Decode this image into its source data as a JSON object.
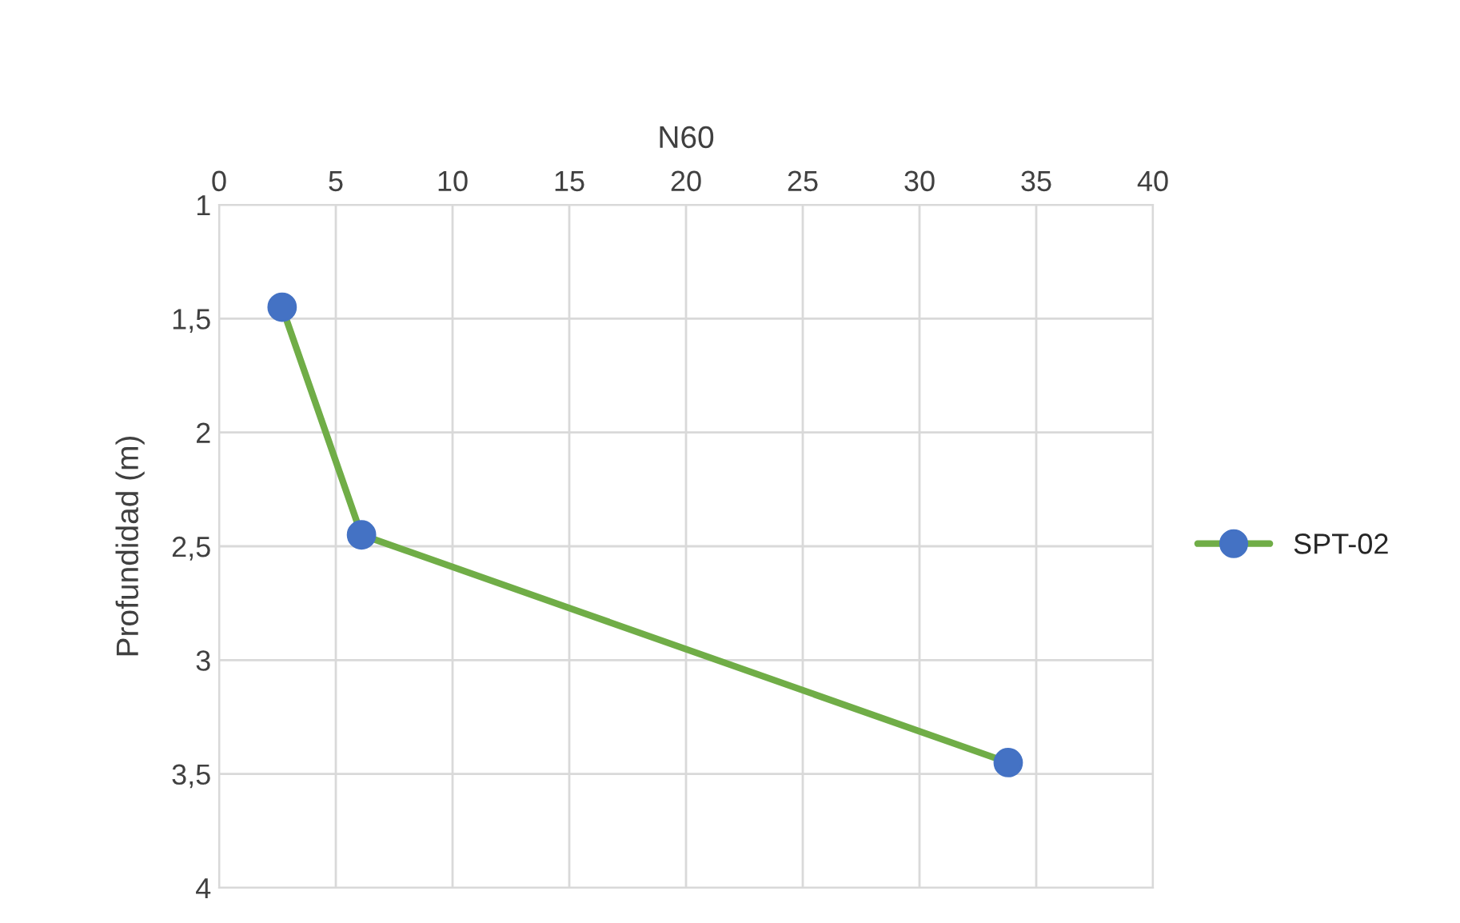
{
  "chart_data": {
    "type": "line",
    "xlabel": "N60",
    "ylabel": "Profundidad (m)",
    "series": [
      {
        "name": "SPT-02",
        "color": "#70ad47",
        "colors": [
          "#4472c4",
          "#4472c4",
          "#4472c4"
        ],
        "x": [
          2.7,
          6.1,
          33.8
        ],
        "values": [
          1.45,
          2.45,
          3.45
        ]
      }
    ],
    "xlim": [
      0,
      40
    ],
    "xticks": [
      0,
      5,
      10,
      15,
      20,
      25,
      30,
      35,
      40
    ],
    "ylim": [
      4,
      1
    ],
    "yticks": [
      1,
      {
        "value": 1.5,
        "label": "1,5"
      },
      2,
      {
        "value": 2.5,
        "label": "2,5"
      },
      3,
      {
        "value": 3.5,
        "label": "3,5"
      },
      4
    ],
    "grid": true,
    "legend": "right",
    "marker": "circle",
    "line_style": "solid"
  }
}
